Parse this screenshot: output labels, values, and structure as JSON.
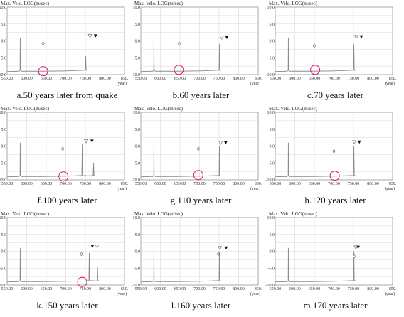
{
  "colors": {
    "curve": "#8a8a8a",
    "grid": "#d9d9d9",
    "frame": "#9a9a9a",
    "highlight": "#e0207a",
    "marker_open": "#777777",
    "marker_filled": "#111111"
  },
  "chart_data": [
    {
      "type": "line",
      "caption": "a.50 years later from quake",
      "ylabel": "Max. Velo. LOG(m/sec)",
      "xunit": "(year)",
      "xlim": [
        550,
        850
      ],
      "ylim": [
        -10,
        10
      ],
      "yticks": [
        "10.0",
        "5.0",
        "0.0",
        "-5.0",
        "-10.0"
      ],
      "xticks": [
        "550.00",
        "600.00",
        "650.00",
        "700.00",
        "750.00",
        "800.00",
        "850."
      ],
      "series": [
        {
          "x": [
            550,
            580,
            583,
            583.5,
            584,
            587,
            640,
            700,
            750,
            751,
            752,
            755
          ],
          "y": [
            -9.1,
            -9.0,
            -8.8,
            1.0,
            -8.7,
            -9.0,
            -9.0,
            -8.9,
            -8.7,
            -4.5,
            -8.7,
            -8.8
          ]
        }
      ],
      "highlight": {
        "x": 642,
        "y": -9.0
      },
      "diamond": {
        "x": 642,
        "y": -0.8
      },
      "open_triangle": {
        "x": 762,
        "y": 1.5
      },
      "filled_triangle": {
        "x": 776,
        "y": 1.5
      }
    },
    {
      "type": "line",
      "caption": "f.100 years later",
      "ylabel": "Max. Velo. LOG(m/sec)",
      "xunit": "(year)",
      "xlim": [
        550,
        850
      ],
      "ylim": [
        -10,
        10
      ],
      "yticks": [
        "10.0",
        "5.0",
        "0.0",
        "-5.0",
        "-10.0"
      ],
      "xticks": [
        "550.00",
        "600.00",
        "650.00",
        "700.00",
        "750.00",
        "800.00",
        "850."
      ],
      "series": [
        {
          "x": [
            550,
            580,
            583,
            583.5,
            584,
            587,
            640,
            700,
            741,
            742,
            743,
            760,
            770,
            771,
            772,
            775
          ],
          "y": [
            -9.1,
            -9.0,
            -8.8,
            1.0,
            -8.7,
            -9.0,
            -9.0,
            -8.9,
            -8.7,
            0.5,
            -8.7,
            -8.8,
            -8.7,
            -5.0,
            -8.7,
            -8.8
          ]
        }
      ],
      "highlight": {
        "x": 694,
        "y": -9.0
      },
      "diamond": {
        "x": 692,
        "y": -0.8
      },
      "open_triangle": {
        "x": 752,
        "y": 1.5
      },
      "filled_triangle": {
        "x": 767,
        "y": 1.5
      }
    },
    {
      "type": "line",
      "caption": "k.150 years later",
      "ylabel": "Max. Velo. LOG(m/sec)",
      "xunit": "(year)",
      "xlim": [
        550,
        850
      ],
      "ylim": [
        -10,
        10
      ],
      "yticks": [
        "10.0",
        "5.0",
        "0.0",
        "-5.0",
        "-10.0"
      ],
      "xticks": [
        "550.00",
        "600.00",
        "650.00",
        "700.00",
        "750.00",
        "800.00",
        "850."
      ],
      "series": [
        {
          "x": [
            550,
            580,
            583,
            583.5,
            584,
            587,
            640,
            700,
            750,
            759,
            760,
            761,
            780,
            781,
            782,
            785
          ],
          "y": [
            -9.1,
            -9.0,
            -8.8,
            1.0,
            -8.7,
            -9.0,
            -9.0,
            -8.9,
            -8.8,
            -8.7,
            -0.5,
            -8.7,
            -8.8,
            -4.5,
            -8.7,
            -8.8
          ]
        }
      ],
      "highlight": {
        "x": 742,
        "y": -9.1
      },
      "diamond": {
        "x": 740,
        "y": -0.8
      },
      "open_triangle": {
        "x": 780,
        "y": 1.5
      },
      "filled_triangle": {
        "x": 768,
        "y": 1.5
      }
    },
    {
      "type": "line",
      "caption": "b.60 years later",
      "ylabel": "Max. Velo. LOG(m/sec)",
      "xunit": "(year)",
      "xlim": [
        550,
        850
      ],
      "ylim": [
        -10,
        10
      ],
      "yticks": [
        "10.0",
        "5.0",
        "0.0",
        "-5.0",
        "-10.0"
      ],
      "xticks": [
        "550.00",
        "600.00",
        "650.00",
        "700.00",
        "750.00",
        "800.00",
        "850."
      ],
      "series": [
        {
          "x": [
            550,
            580,
            583,
            583.5,
            584,
            587,
            640,
            700,
            750,
            751,
            752,
            755
          ],
          "y": [
            -9.1,
            -9.0,
            -8.8,
            1.0,
            -8.7,
            -9.0,
            -9.0,
            -8.9,
            -8.7,
            -1.0,
            -8.7,
            -8.8
          ]
        }
      ],
      "highlight": {
        "x": 647,
        "y": -8.6
      },
      "diamond": {
        "x": 648,
        "y": -0.8
      },
      "open_triangle": {
        "x": 757,
        "y": 1.0
      },
      "filled_triangle": {
        "x": 770,
        "y": 1.0
      }
    },
    {
      "type": "line",
      "caption": "g.110 years later",
      "ylabel": "Max. Velo. LOG(m/sec)",
      "xunit": "(year)",
      "xlim": [
        550,
        850
      ],
      "ylim": [
        -10,
        10
      ],
      "yticks": [
        "10.0",
        "5.0",
        "0.0",
        "-5.0",
        "-10.0"
      ],
      "xticks": [
        "550.00",
        "600.00",
        "650.00",
        "700.00",
        "750.00",
        "800.00",
        "850."
      ],
      "series": [
        {
          "x": [
            550,
            580,
            583,
            583.5,
            584,
            587,
            640,
            700,
            750,
            751,
            752,
            755
          ],
          "y": [
            -9.1,
            -9.0,
            -8.8,
            1.0,
            -8.7,
            -9.0,
            -9.0,
            -8.9,
            -8.7,
            0.0,
            -8.7,
            -8.8
          ]
        }
      ],
      "highlight": {
        "x": 697,
        "y": -8.6
      },
      "diamond": {
        "x": 697,
        "y": -0.8
      },
      "open_triangle": {
        "x": 754,
        "y": 1.0
      },
      "filled_triangle": {
        "x": 767,
        "y": 1.0
      }
    },
    {
      "type": "line",
      "caption": "l.160 years later",
      "ylabel": "Max. Velo. LOG(m/sec)",
      "xunit": "(year)",
      "xlim": [
        550,
        850
      ],
      "ylim": [
        -10,
        10
      ],
      "yticks": [
        "10.0",
        "5.0",
        "0.0",
        "-5.0",
        "-10.0"
      ],
      "xticks": [
        "550.00",
        "600.00",
        "650.00",
        "700.00",
        "750.00",
        "800.00",
        "850."
      ],
      "series": [
        {
          "x": [
            550,
            580,
            583,
            583.5,
            584,
            587,
            640,
            700,
            750,
            751,
            752,
            755
          ],
          "y": [
            -9.1,
            -9.0,
            -8.8,
            1.0,
            -8.7,
            -9.0,
            -9.0,
            -8.9,
            -8.7,
            -0.3,
            -8.7,
            -8.8
          ]
        }
      ],
      "diamond": {
        "x": 748,
        "y": -0.8
      },
      "open_triangle": {
        "x": 752,
        "y": 1.0
      },
      "filled_triangle": {
        "x": 768,
        "y": 1.0
      }
    },
    {
      "type": "line",
      "caption": "c.70 years later",
      "ylabel": "Max. Velo. LOG(m/sec)",
      "xunit": "(year)",
      "xlim": [
        550,
        850
      ],
      "ylim": [
        -10,
        10
      ],
      "yticks": [
        "10.0",
        "5.0",
        "0.0",
        "-5.0",
        "-10.0"
      ],
      "xticks": [
        "550.00",
        "600.00",
        "650.00",
        "700.00",
        "750.00",
        "800.00",
        "850."
      ],
      "series": [
        {
          "x": [
            550,
            580,
            583,
            583.5,
            584,
            587,
            640,
            700,
            750,
            751,
            752,
            755
          ],
          "y": [
            -9.1,
            -9.0,
            -8.8,
            1.0,
            -8.7,
            -9.0,
            -9.0,
            -8.9,
            -8.7,
            -1.0,
            -8.7,
            -8.8
          ]
        }
      ],
      "highlight": {
        "x": 652,
        "y": -8.6
      },
      "diamond": {
        "x": 650,
        "y": -1.5
      },
      "open_triangle": {
        "x": 757,
        "y": 1.2
      },
      "filled_triangle": {
        "x": 770,
        "y": 1.2
      }
    },
    {
      "type": "line",
      "caption": "h.120 years later",
      "ylabel": "Max. Velo. LOG(m/sec)",
      "xunit": "(year)",
      "xlim": [
        550,
        850
      ],
      "ylim": [
        -10,
        10
      ],
      "yticks": [
        "10.0",
        "5.0",
        "0.0",
        "-5.0",
        "-10.0"
      ],
      "xticks": [
        "550.00",
        "600.00",
        "650.00",
        "700.00",
        "750.00",
        "800.00",
        "850."
      ],
      "series": [
        {
          "x": [
            550,
            580,
            583,
            583.5,
            584,
            587,
            640,
            700,
            750,
            751,
            752,
            755
          ],
          "y": [
            -9.1,
            -9.0,
            -8.8,
            1.0,
            -8.7,
            -9.0,
            -9.0,
            -8.9,
            -8.7,
            0.0,
            -8.7,
            -8.8
          ]
        }
      ],
      "highlight": {
        "x": 702,
        "y": -8.8
      },
      "diamond": {
        "x": 700,
        "y": -1.5
      },
      "open_triangle": {
        "x": 752,
        "y": 1.2
      },
      "filled_triangle": {
        "x": 765,
        "y": 1.2
      }
    },
    {
      "type": "line",
      "caption": "m.170 years later",
      "ylabel": "Max. Velo. LOG(m/sec)",
      "xunit": "(year)",
      "xlim": [
        550,
        850
      ],
      "ylim": [
        -10,
        10
      ],
      "yticks": [
        "10.0",
        "5.0",
        "0.0",
        "-5.0",
        "-10.0"
      ],
      "xticks": [
        "550.00",
        "600.00",
        "650.00",
        "700.00",
        "750.00",
        "800.00",
        "850."
      ],
      "series": [
        {
          "x": [
            550,
            580,
            583,
            583.5,
            584,
            587,
            640,
            700,
            750,
            751,
            752,
            755
          ],
          "y": [
            -9.1,
            -9.0,
            -8.8,
            1.0,
            -8.7,
            -9.0,
            -9.0,
            -8.9,
            -8.7,
            0.0,
            -8.7,
            -8.8
          ]
        }
      ],
      "diamond": {
        "x": 752,
        "y": -1.5
      },
      "open_triangle": {
        "x": 756,
        "y": 1.2
      },
      "filled_triangle": {
        "x": 762,
        "y": 1.2
      }
    }
  ]
}
